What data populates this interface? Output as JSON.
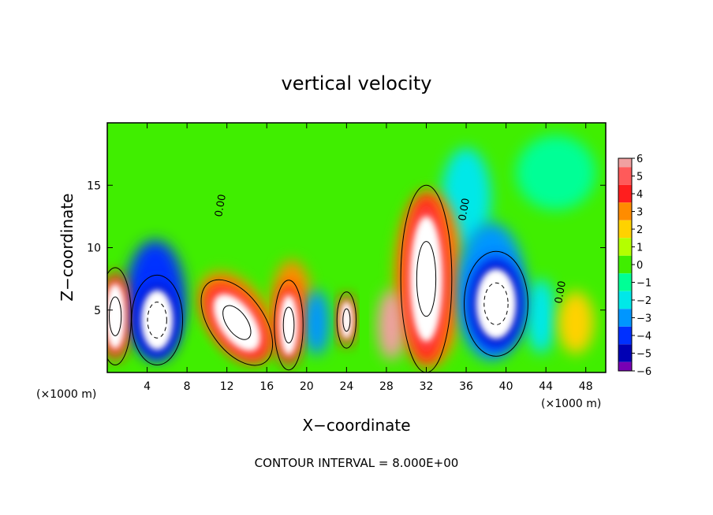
{
  "chart_data": {
    "type": "heatmap",
    "title": "vertical velocity",
    "xlabel": "X−coordinate",
    "ylabel": "Z−coordinate",
    "x_unit_left": "(×1000 m)",
    "x_unit_right": "(×1000 m)",
    "xlim": [
      0,
      50
    ],
    "ylim": [
      0,
      20
    ],
    "x_ticks": [
      4,
      8,
      12,
      16,
      20,
      24,
      28,
      32,
      36,
      40,
      44,
      48
    ],
    "y_ticks": [
      5,
      10,
      15
    ],
    "colorbar_levels": [
      6,
      5,
      4,
      3,
      2,
      1,
      0,
      -1,
      -2,
      -3,
      -4,
      -5,
      -6
    ],
    "colorbar_colors": [
      "#f0a0a0",
      "#ff5a5a",
      "#ff1e1e",
      "#ff8c00",
      "#ffd200",
      "#b4ff00",
      "#40ee00",
      "#00ff96",
      "#00e8e8",
      "#0096ff",
      "#0030ff",
      "#0000b4",
      "#7800b4"
    ],
    "contour_label": "0.00",
    "footer": "CONTOUR INTERVAL = 8.000E+00",
    "regions": [
      {
        "cx": 0.8,
        "cy": 4.5,
        "rx": 1.0,
        "ry": 2.6,
        "v": 9
      },
      {
        "cx": 5.0,
        "cy": 4.2,
        "rx": 1.6,
        "ry": 2.4,
        "v": -9
      },
      {
        "cx": 4.8,
        "cy": 6.0,
        "rx": 3.0,
        "ry": 4.6,
        "v": -4
      },
      {
        "cx": 13.0,
        "cy": 4.0,
        "rx": 1.7,
        "ry": 2.6,
        "v": 9,
        "rot": -35
      },
      {
        "cx": 13.0,
        "cy": 4.5,
        "rx": 3.0,
        "ry": 4.0,
        "v": 3,
        "rot": -35
      },
      {
        "cx": 18.2,
        "cy": 3.8,
        "rx": 0.9,
        "ry": 2.4,
        "v": 8
      },
      {
        "cx": 18.5,
        "cy": 5.5,
        "rx": 2.0,
        "ry": 3.5,
        "v": 3
      },
      {
        "cx": 21.0,
        "cy": 4.0,
        "rx": 1.3,
        "ry": 2.6,
        "v": -3
      },
      {
        "cx": 24.0,
        "cy": 4.2,
        "rx": 0.6,
        "ry": 1.5,
        "v": 7
      },
      {
        "cx": 28.5,
        "cy": 3.8,
        "rx": 1.4,
        "ry": 2.8,
        "v": 6
      },
      {
        "cx": 32.0,
        "cy": 7.5,
        "rx": 1.6,
        "ry": 5.0,
        "v": 9
      },
      {
        "cx": 32.3,
        "cy": 7.5,
        "rx": 3.5,
        "ry": 7.0,
        "v": 3
      },
      {
        "cx": 39.0,
        "cy": 5.5,
        "rx": 2.0,
        "ry": 2.8,
        "v": -9
      },
      {
        "cx": 38.5,
        "cy": 6.5,
        "rx": 3.5,
        "ry": 5.5,
        "v": -3
      },
      {
        "cx": 36.0,
        "cy": 14.0,
        "rx": 2.5,
        "ry": 4.0,
        "v": -1.5
      },
      {
        "cx": 43.5,
        "cy": 4.5,
        "rx": 1.5,
        "ry": 3.0,
        "v": -2
      },
      {
        "cx": 47.0,
        "cy": 4.0,
        "rx": 1.8,
        "ry": 2.5,
        "v": 2
      },
      {
        "cx": 45.0,
        "cy": 16.0,
        "rx": 4.0,
        "ry": 3.0,
        "v": -1
      }
    ]
  }
}
